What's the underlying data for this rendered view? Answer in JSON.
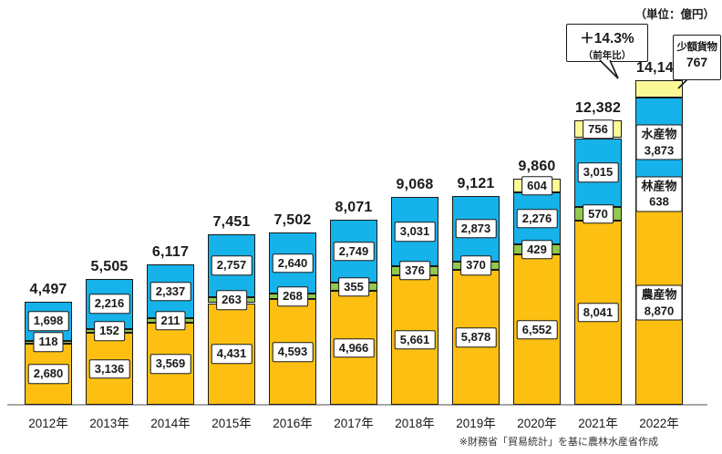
{
  "chart_data": {
    "type": "bar",
    "stacked": true,
    "title": "",
    "unit_label": "（単位：億円）",
    "xlabel": "",
    "ylabel": "",
    "ylim": [
      0,
      14148
    ],
    "grid": false,
    "legend_position": "category-names-shown-on-2022-bar",
    "categories": [
      "2012年",
      "2013年",
      "2014年",
      "2015年",
      "2016年",
      "2017年",
      "2018年",
      "2019年",
      "2020年",
      "2021年",
      "2022年"
    ],
    "series": [
      {
        "name": "農産物",
        "key": "agri",
        "color": "#FDC012",
        "values": [
          2680,
          3136,
          3569,
          4431,
          4593,
          4966,
          5661,
          5878,
          6552,
          8041,
          8870
        ]
      },
      {
        "name": "林産物",
        "key": "forest",
        "color": "#92C84E",
        "values": [
          118,
          152,
          211,
          263,
          268,
          355,
          376,
          370,
          429,
          570,
          638
        ]
      },
      {
        "name": "水産物",
        "key": "fish",
        "color": "#16B2EA",
        "values": [
          1698,
          2216,
          2337,
          2757,
          2640,
          2749,
          3031,
          2873,
          2276,
          3015,
          3873
        ]
      },
      {
        "name": "少額貨物",
        "key": "small",
        "color": "#FBF896",
        "values": [
          null,
          null,
          null,
          null,
          null,
          null,
          null,
          null,
          604,
          756,
          767
        ]
      }
    ],
    "totals": [
      4497,
      5505,
      6117,
      7451,
      7502,
      8071,
      9068,
      9121,
      9860,
      12382,
      14148
    ]
  },
  "annotations": {
    "yoy_callout": {
      "main": "＋14.3%",
      "sub": "（前年比）"
    },
    "small_parcel_callout": {
      "label": "少額貨物",
      "value": "767"
    }
  },
  "source_note": "※財務省「貿易統計」を基に農林水産省作成",
  "colors": {
    "ink": "#1a1a1a",
    "axis": "#a6a6a6"
  }
}
